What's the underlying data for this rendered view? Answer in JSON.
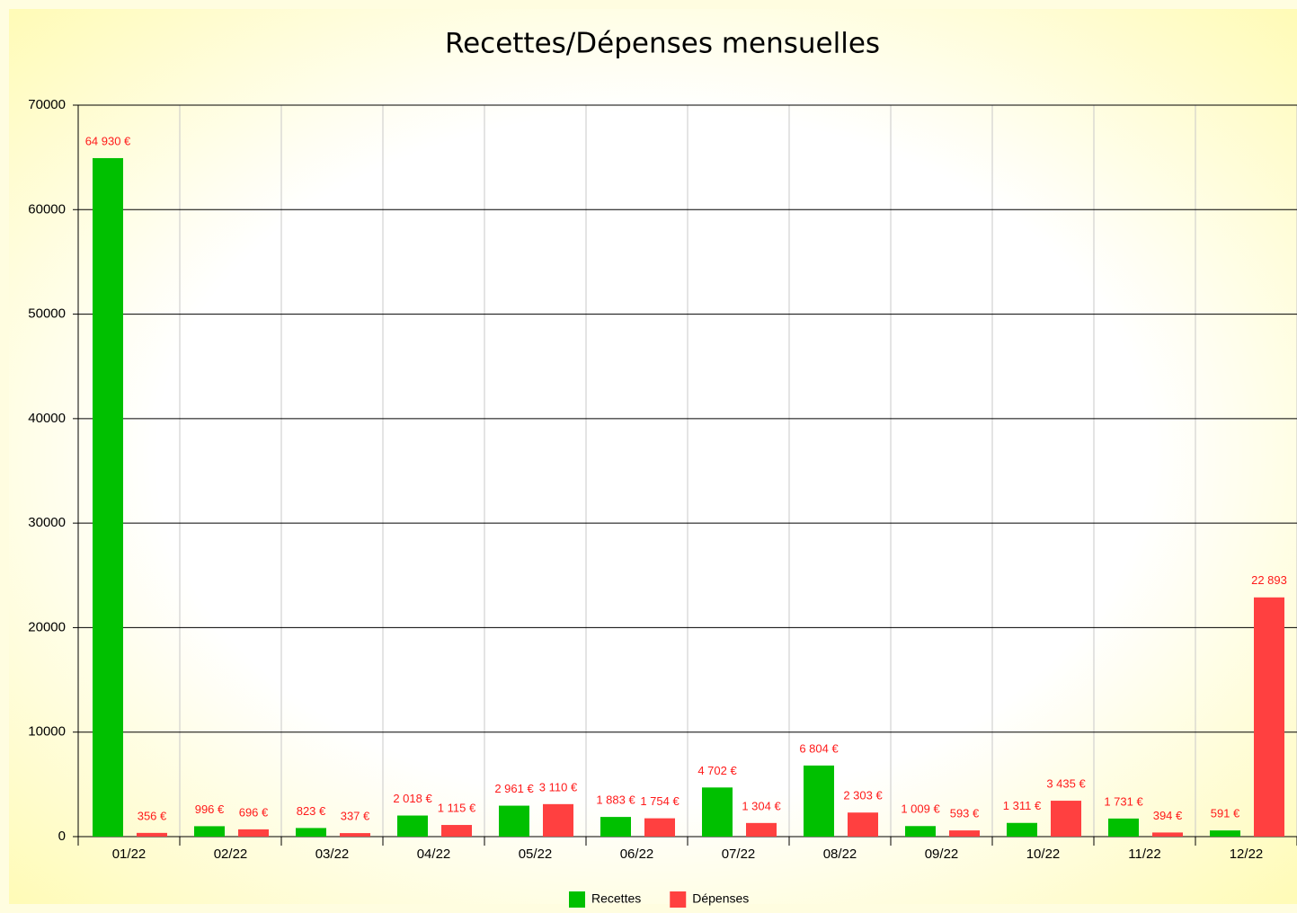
{
  "chart_data": {
    "type": "bar",
    "title": "Recettes/Dépenses mensuelles",
    "categories": [
      "01/22",
      "02/22",
      "03/22",
      "04/22",
      "05/22",
      "06/22",
      "07/22",
      "08/22",
      "09/22",
      "10/22",
      "11/22",
      "12/22"
    ],
    "series": [
      {
        "name": "Recettes",
        "color": "#00c000",
        "values": [
          64930,
          996,
          823,
          2018,
          2961,
          1883,
          4702,
          6804,
          1009,
          1311,
          1731,
          591
        ],
        "value_labels": [
          "64 930 €",
          "996 €",
          "823 €",
          "2 018 €",
          "2 961 €",
          "1 883 €",
          "4 702 €",
          "6 804 €",
          "1 009 €",
          "1 311 €",
          "1 731 €",
          "591 €"
        ]
      },
      {
        "name": "Dépenses",
        "color": "#ff4040",
        "values": [
          356,
          696,
          337,
          1115,
          3110,
          1754,
          1304,
          2303,
          593,
          3435,
          394,
          22893
        ],
        "value_labels": [
          "356 €",
          "696 €",
          "337 €",
          "1 115 €",
          "3 110 €",
          "1 754 €",
          "1 304 €",
          "2 303 €",
          "593 €",
          "3 435 €",
          "394 €",
          "22 893"
        ]
      }
    ],
    "ylim": [
      0,
      70000
    ],
    "yticks": [
      0,
      10000,
      20000,
      30000,
      40000,
      50000,
      60000,
      70000
    ],
    "grid": true
  }
}
